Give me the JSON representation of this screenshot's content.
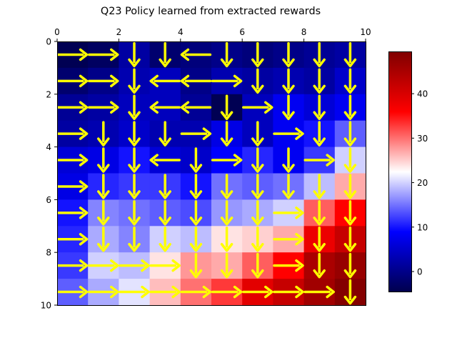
{
  "chart_data": {
    "type": "heatmap",
    "title": "Q23 Policy learned from extracted rewards",
    "xlabel": "",
    "ylabel": "",
    "x_ticks": [
      0,
      2,
      4,
      6,
      8,
      10
    ],
    "y_ticks": [
      0,
      2,
      4,
      6,
      8,
      10
    ],
    "xlim": [
      0,
      10
    ],
    "ylim": [
      10,
      0
    ],
    "x_axis_position": "top",
    "grid": false,
    "colormap": "seismic",
    "colorbar": {
      "vmin": -4.5,
      "vmax": 49.5,
      "ticks": [
        0,
        10,
        20,
        30,
        40
      ]
    },
    "arrow_color": "#ffff00",
    "values": [
      [
        -4,
        -3,
        2,
        -2,
        -1,
        0,
        -1,
        0,
        1,
        2
      ],
      [
        -2,
        0,
        3,
        4,
        0,
        3,
        2,
        3,
        2,
        5
      ],
      [
        1,
        2,
        4,
        4,
        1,
        -4,
        4,
        8,
        6,
        8
      ],
      [
        2,
        3,
        5,
        3,
        3,
        7,
        4,
        8,
        10,
        14
      ],
      [
        6,
        7,
        10,
        6,
        5,
        9,
        11,
        8,
        12,
        20
      ],
      [
        7,
        11,
        12,
        12,
        10,
        15,
        14,
        15,
        19,
        27
      ],
      [
        10,
        16,
        15,
        14,
        13,
        17,
        18,
        20,
        31,
        36
      ],
      [
        11,
        18,
        16,
        20,
        19,
        24,
        25,
        27,
        38,
        42
      ],
      [
        12,
        20,
        19,
        24,
        28,
        27,
        31,
        36,
        45,
        47
      ],
      [
        14,
        18,
        21,
        26,
        30,
        33,
        39,
        42,
        46,
        49
      ]
    ],
    "policy": [
      [
        "right",
        "right",
        "down",
        "down",
        "left",
        "down",
        "down",
        "down",
        "down",
        "down"
      ],
      [
        "right",
        "right",
        "down",
        "left",
        "left",
        "right",
        "down",
        "down",
        "down",
        "down"
      ],
      [
        "right",
        "right",
        "down",
        "left",
        "left",
        "down",
        "right",
        "down",
        "down",
        "down"
      ],
      [
        "right",
        "down",
        "down",
        "down",
        "right",
        "down",
        "down",
        "right",
        "down",
        "down"
      ],
      [
        "right",
        "down",
        "down",
        "left",
        "down",
        "right",
        "down",
        "down",
        "right",
        "down"
      ],
      [
        "right",
        "down",
        "down",
        "down",
        "down",
        "down",
        "down",
        "down",
        "down",
        "down"
      ],
      [
        "right",
        "down",
        "down",
        "down",
        "down",
        "down",
        "down",
        "right",
        "down",
        "down"
      ],
      [
        "right",
        "down",
        "down",
        "down",
        "down",
        "down",
        "down",
        "right",
        "down",
        "down"
      ],
      [
        "right",
        "right",
        "right",
        "right",
        "down",
        "down",
        "down",
        "right",
        "down",
        "down"
      ],
      [
        "right",
        "right",
        "right",
        "right",
        "right",
        "right",
        "right",
        "right",
        "right",
        "down"
      ]
    ]
  }
}
